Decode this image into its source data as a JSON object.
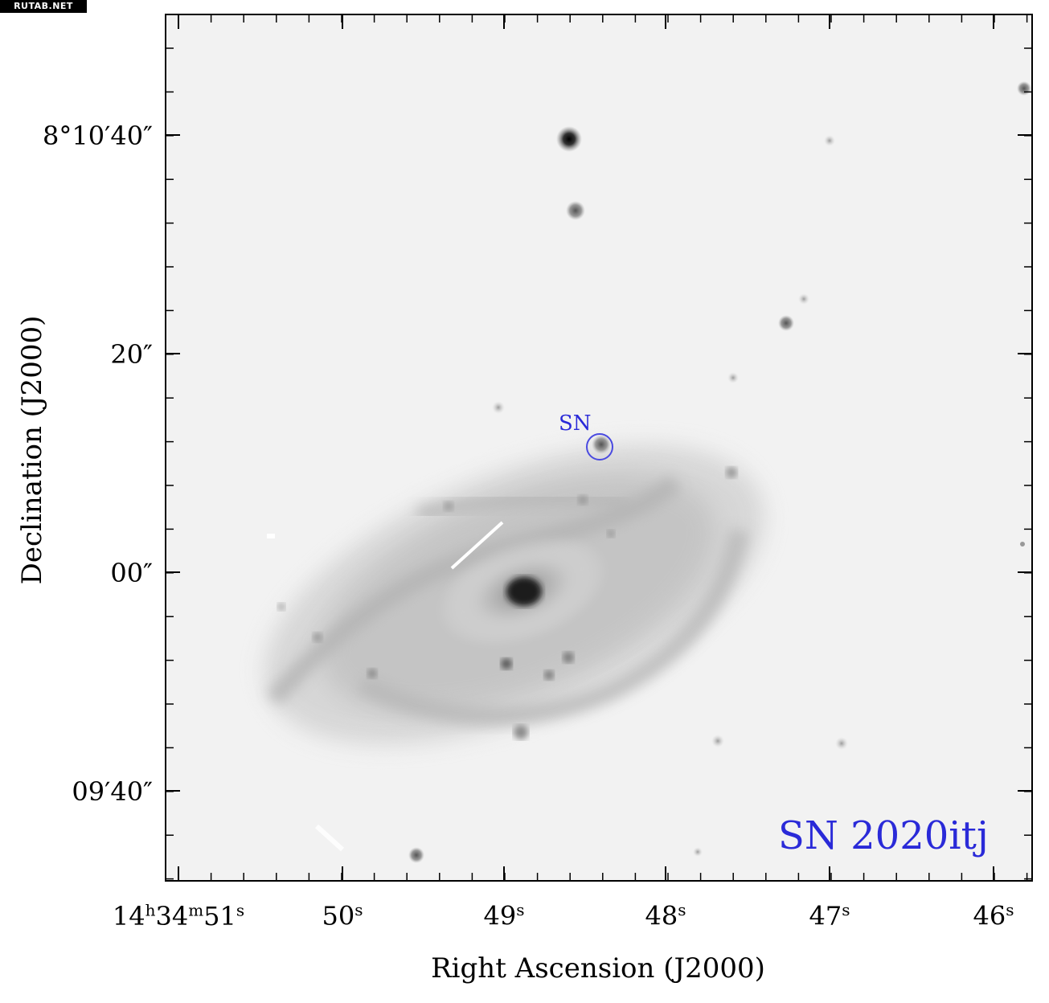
{
  "watermark": "RUTAB.NET",
  "axes": {
    "ylabel": "Declination (J2000)",
    "xlabel": "Right Ascension (J2000)",
    "yticks": [
      "8°10′40″",
      "20″",
      "00″",
      "09′40″"
    ],
    "xticks": [
      "14h34m51s",
      "50s",
      "49s",
      "48s",
      "47s",
      "46s"
    ]
  },
  "annotations": {
    "object_name": "SN 2020itj",
    "marker_label": "SN"
  },
  "colors": {
    "annotation": "#2a2ad8",
    "sky_background": "#f2f2f2",
    "frame": "#000000"
  }
}
